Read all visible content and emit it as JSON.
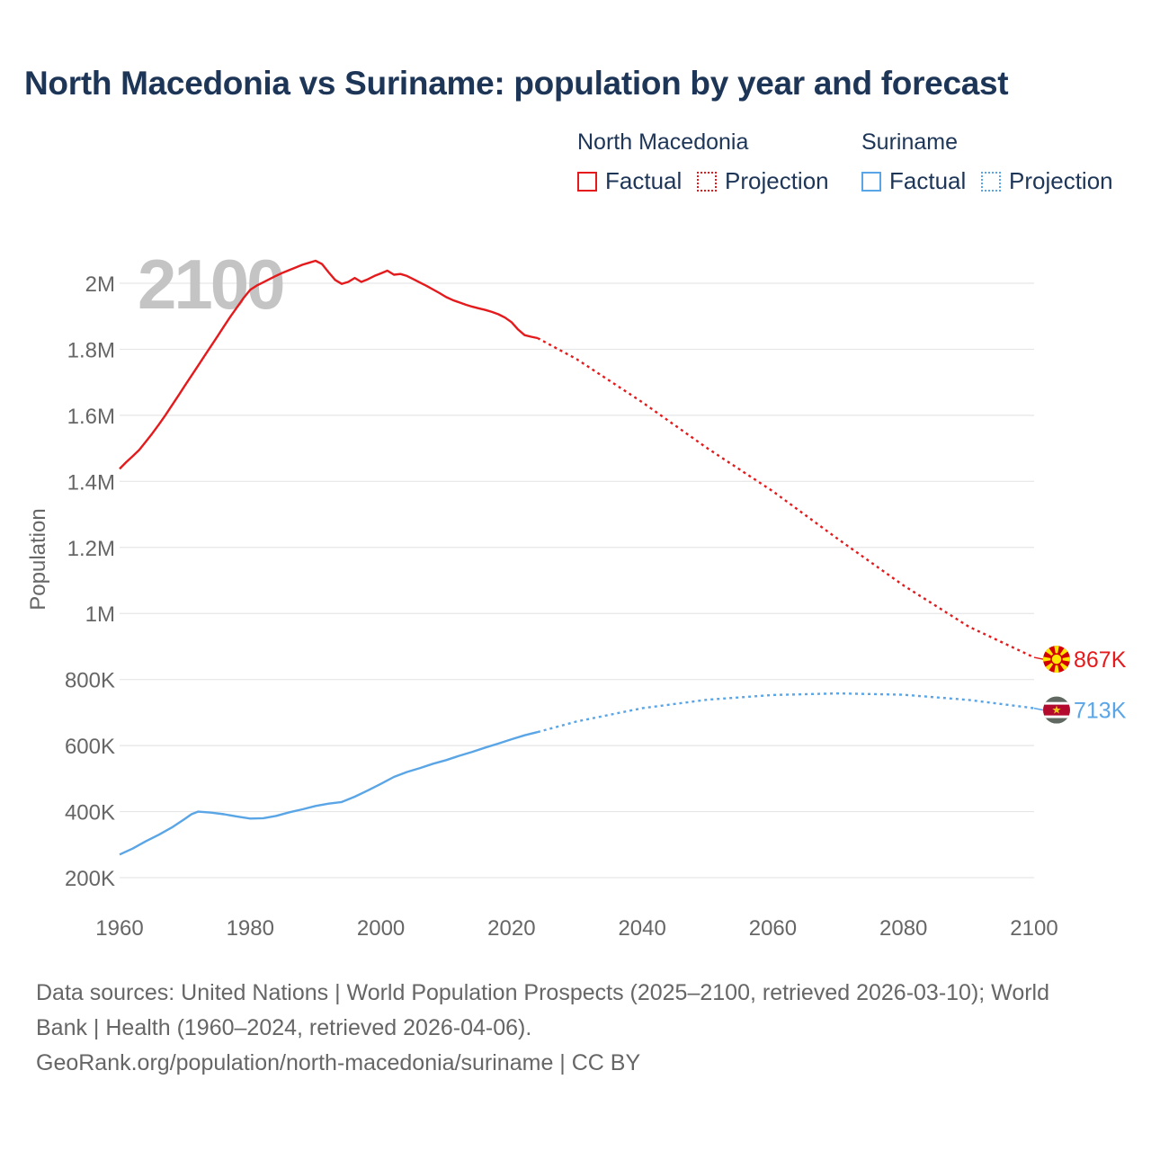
{
  "title": "North Macedonia vs Suriname: population by year and forecast",
  "legend": {
    "groups": [
      {
        "name": "North Macedonia",
        "color": "#e41a1c",
        "factual_label": "Factual",
        "projection_label": "Projection"
      },
      {
        "name": "Suriname",
        "color": "#5aa5e6",
        "factual_label": "Factual",
        "projection_label": "Projection"
      }
    ]
  },
  "footer": {
    "line1": "Data sources: United Nations | World Population Prospects (2025–2100, retrieved 2026-03-10); World",
    "line2": "Bank | Health (1960–2024, retrieved 2026-04-06).",
    "line3": "GeoRank.org/population/north-macedonia/suriname | CC BY"
  },
  "chart_data": {
    "type": "line",
    "watermark_year": "2100",
    "ylabel": "Population",
    "xlabel": "",
    "xlim": [
      1960,
      2100
    ],
    "ylim": [
      150000,
      2120000
    ],
    "x_ticks": [
      1960,
      1980,
      2000,
      2020,
      2040,
      2060,
      2080,
      2100
    ],
    "x_tick_labels": [
      "1960",
      "1980",
      "2000",
      "2020",
      "2040",
      "2060",
      "2080",
      "2100"
    ],
    "y_ticks": [
      200000,
      400000,
      600000,
      800000,
      1000000,
      1200000,
      1400000,
      1600000,
      1800000,
      2000000
    ],
    "y_tick_labels": [
      "200K",
      "400K",
      "600K",
      "800K",
      "1M",
      "1.2M",
      "1.4M",
      "1.6M",
      "1.8M",
      "2M"
    ],
    "series": [
      {
        "name": "North Macedonia",
        "color": "#e41a1c",
        "end_label": "867K",
        "flag": "north-macedonia-flag",
        "factual": {
          "x": [
            1960,
            1961,
            1962,
            1963,
            1964,
            1965,
            1966,
            1967,
            1968,
            1969,
            1970,
            1971,
            1972,
            1973,
            1974,
            1975,
            1976,
            1977,
            1978,
            1979,
            1980,
            1981,
            1982,
            1983,
            1984,
            1985,
            1986,
            1987,
            1988,
            1989,
            1990,
            1991,
            1992,
            1993,
            1994,
            1995,
            1996,
            1997,
            1998,
            1999,
            2000,
            2001,
            2002,
            2003,
            2004,
            2005,
            2006,
            2007,
            2008,
            2009,
            2010,
            2011,
            2012,
            2013,
            2014,
            2015,
            2016,
            2017,
            2018,
            2019,
            2020,
            2021,
            2022,
            2023,
            2024
          ],
          "y": [
            1438000,
            1458000,
            1476000,
            1495000,
            1520000,
            1545000,
            1572000,
            1600000,
            1630000,
            1660000,
            1690000,
            1720000,
            1750000,
            1780000,
            1810000,
            1840000,
            1870000,
            1900000,
            1928000,
            1956000,
            1980000,
            1993000,
            2003000,
            2013000,
            2023000,
            2032000,
            2040000,
            2048000,
            2056000,
            2062000,
            2068000,
            2058000,
            2033000,
            2010000,
            1998000,
            2004000,
            2016000,
            2004000,
            2012000,
            2022000,
            2030000,
            2038000,
            2026000,
            2028000,
            2022000,
            2012000,
            2002000,
            1992000,
            1981000,
            1970000,
            1958000,
            1949000,
            1942000,
            1935000,
            1929000,
            1924000,
            1919000,
            1913000,
            1906000,
            1896000,
            1882000,
            1860000,
            1843000,
            1838000,
            1834000
          ]
        },
        "projection": {
          "x": [
            2024,
            2030,
            2040,
            2050,
            2060,
            2070,
            2080,
            2090,
            2100
          ],
          "y": [
            1834000,
            1770000,
            1640000,
            1500000,
            1370000,
            1225000,
            1085000,
            960000,
            867000
          ]
        }
      },
      {
        "name": "Suriname",
        "color": "#5aa5e6",
        "end_label": "713K",
        "flag": "suriname-flag",
        "factual": {
          "x": [
            1960,
            1962,
            1964,
            1966,
            1968,
            1970,
            1971,
            1972,
            1974,
            1976,
            1978,
            1980,
            1982,
            1984,
            1986,
            1988,
            1990,
            1992,
            1994,
            1996,
            1998,
            2000,
            2002,
            2004,
            2006,
            2008,
            2010,
            2012,
            2014,
            2016,
            2018,
            2020,
            2022,
            2024
          ],
          "y": [
            270000,
            288000,
            310000,
            330000,
            352000,
            378000,
            392000,
            400000,
            397000,
            392000,
            385000,
            379000,
            380000,
            387000,
            398000,
            407000,
            417000,
            424000,
            429000,
            445000,
            464000,
            484000,
            505000,
            520000,
            532000,
            545000,
            556000,
            569000,
            581000,
            594000,
            606000,
            619000,
            631000,
            641000
          ]
        },
        "projection": {
          "x": [
            2024,
            2030,
            2040,
            2050,
            2060,
            2070,
            2080,
            2090,
            2100
          ],
          "y": [
            641000,
            673000,
            713000,
            739000,
            753000,
            758000,
            754000,
            738000,
            713000
          ]
        }
      }
    ]
  }
}
